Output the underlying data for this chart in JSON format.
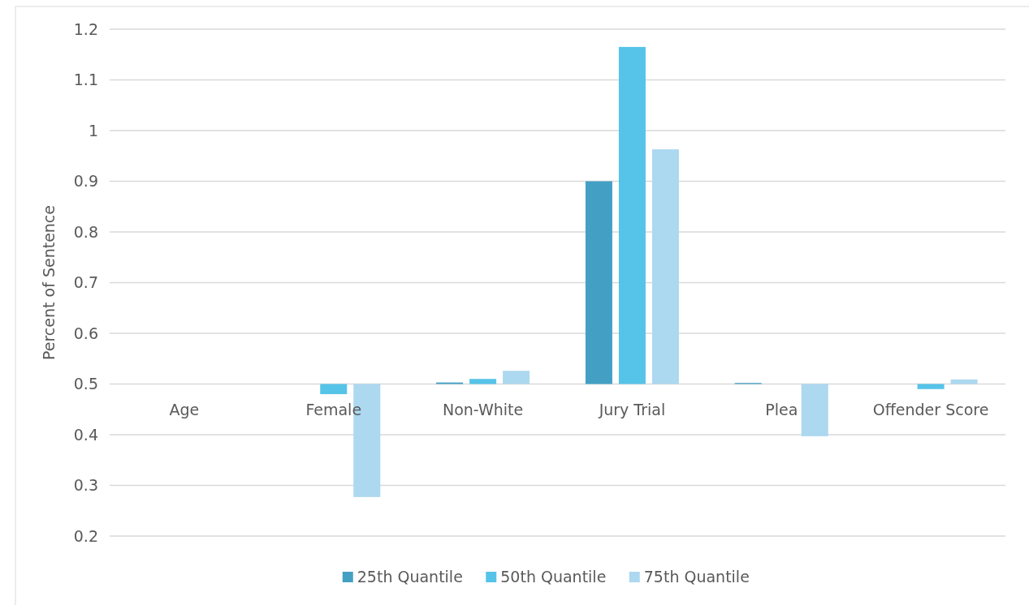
{
  "chart_data": {
    "type": "bar",
    "ylabel": "Percent of Sentence",
    "categories": [
      "Age",
      "Female",
      "Non-White",
      "Jury Trial",
      "Plea",
      "Offender Score"
    ],
    "series": [
      {
        "name": "25th Quantile",
        "color": "#43a0c4",
        "base": [
          null,
          null,
          0.5,
          0.5,
          0.5,
          null
        ],
        "values": [
          null,
          null,
          0.003,
          0.4,
          0.002,
          null
        ]
      },
      {
        "name": "50th Quantile",
        "color": "#56c3e9",
        "base": [
          null,
          0.5,
          0.5,
          0.5,
          null,
          0.5
        ],
        "values": [
          null,
          -0.02,
          0.01,
          0.665,
          null,
          -0.01
        ]
      },
      {
        "name": "75th Quantile",
        "color": "#acd8f0",
        "base": [
          null,
          0.5,
          0.5,
          0.5,
          0.5,
          0.5
        ],
        "values": [
          null,
          -0.223,
          0.026,
          0.463,
          -0.103,
          0.009
        ]
      }
    ],
    "ylim": [
      0.2,
      1.2
    ],
    "yticks": [
      0.2,
      0.3,
      0.4,
      0.5,
      0.6,
      0.7,
      0.8,
      0.9,
      1,
      1.1,
      1.2
    ],
    "grid": "y",
    "legend": "bottom"
  }
}
